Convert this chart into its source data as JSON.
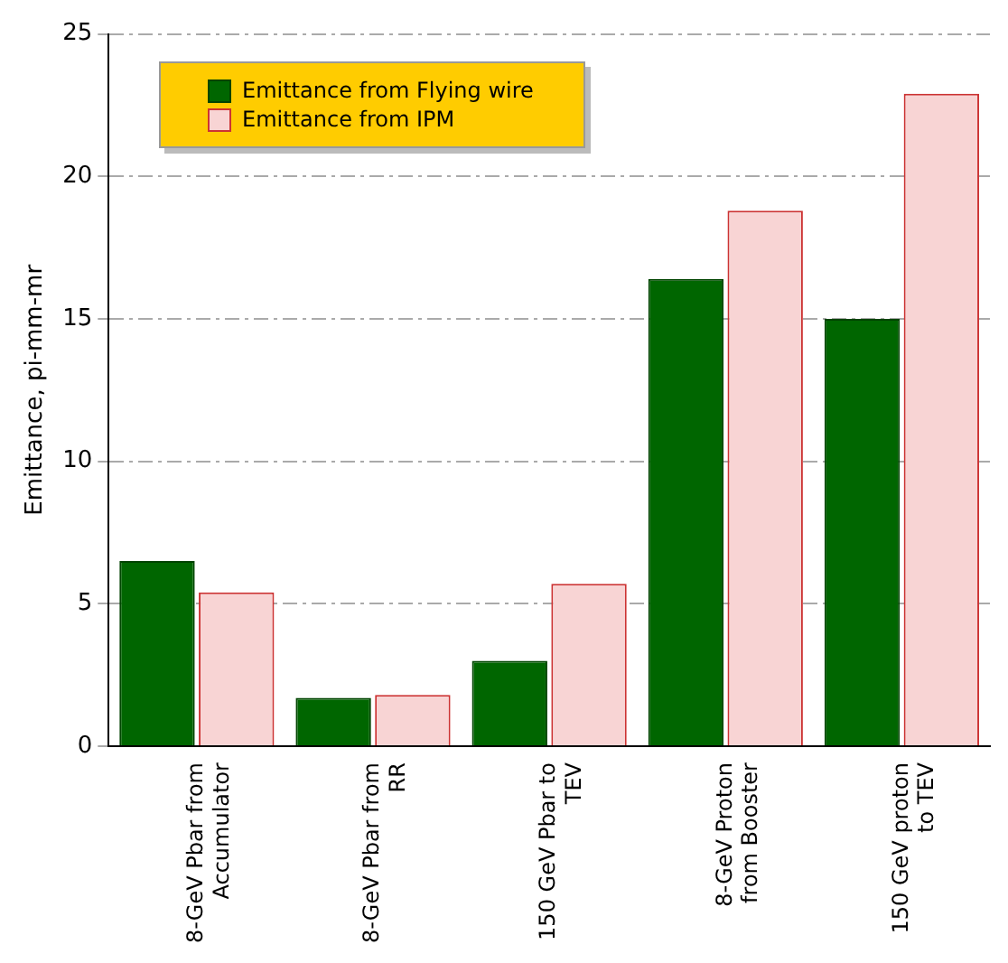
{
  "chart_data": {
    "type": "bar",
    "ylabel": "Emittance, pi-mm-mr",
    "categories": [
      "8-GeV Pbar from Accumulator",
      "8-GeV Pbar from RR",
      "150 GeV Pbar to TEV",
      "8-GeV Proton from Booster",
      "150 GeV proton to TEV"
    ],
    "series": [
      {
        "name": "Emittance from Flying wire",
        "color": "#006600",
        "values": [
          6.5,
          1.7,
          3.0,
          16.4,
          15.0
        ]
      },
      {
        "name": "Emittance from IPM",
        "color": "#f8d4d4",
        "values": [
          5.4,
          1.8,
          5.7,
          18.8,
          22.9
        ]
      }
    ],
    "ylim": [
      0,
      25
    ],
    "yticks": [
      0,
      5,
      10,
      15,
      20,
      25
    ],
    "grid": "y",
    "legend": "top left"
  }
}
